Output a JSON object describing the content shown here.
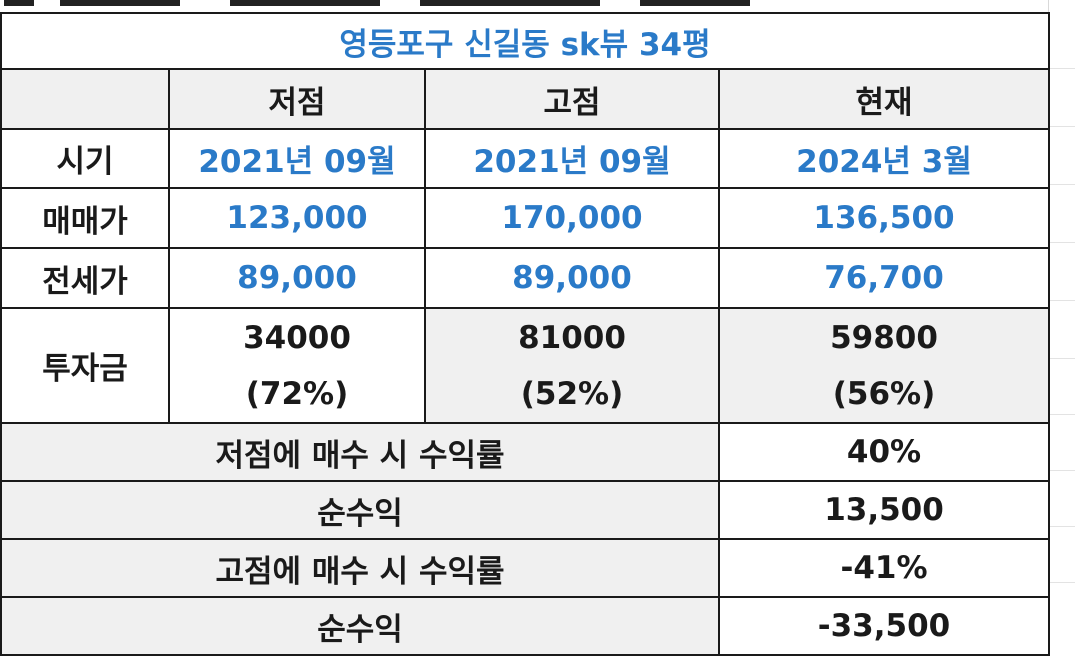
{
  "table": {
    "title": "영등포구 신길동 sk뷰 34평",
    "headers": [
      "",
      "저점",
      "고점",
      "현재"
    ],
    "rows": [
      {
        "label": "시기",
        "values": [
          "2021년 09월",
          "2021년 09월",
          "2024년 3월"
        ]
      },
      {
        "label": "매매가",
        "values": [
          "123,000",
          "170,000",
          "136,500"
        ]
      },
      {
        "label": "전세가",
        "values": [
          "89,000",
          "89,000",
          "76,700"
        ]
      }
    ],
    "investment": {
      "label": "투자금",
      "amounts": [
        "34000",
        "81000",
        "59800"
      ],
      "ratios": [
        "(72%)",
        "(52%)",
        "(56%)"
      ]
    },
    "summary": [
      {
        "label": "저점에 매수 시 수익률",
        "value": "40%"
      },
      {
        "label": "순수익",
        "value": "13,500"
      },
      {
        "label": "고점에 매수 시 수익률",
        "value": "-41%"
      },
      {
        "label": "순수익",
        "value": "-33,500"
      }
    ]
  },
  "colors": {
    "accent_blue": "#2a7ac8",
    "text": "#1a1a1a",
    "header_bg": "#f0f0f0",
    "border": "#1a1a1a"
  }
}
